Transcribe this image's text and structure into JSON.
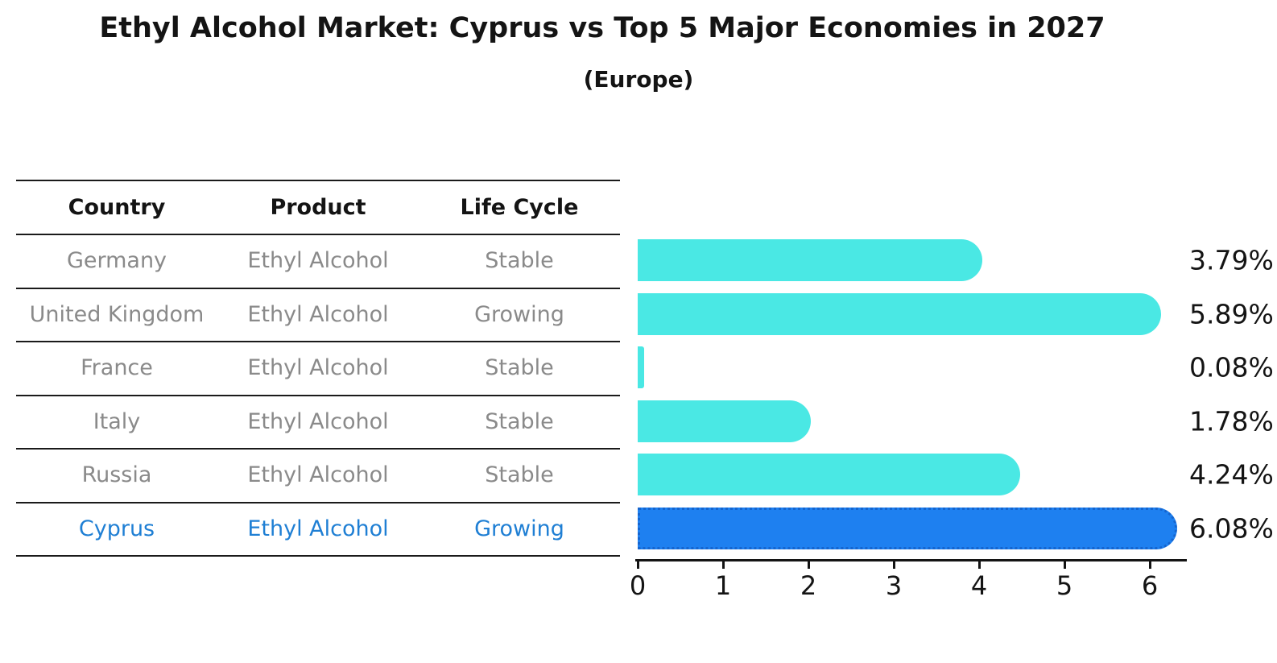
{
  "title": "Ethyl Alcohol Market: Cyprus vs Top 5 Major Economies in 2027",
  "subtitle": "(Europe)",
  "table": {
    "headers": [
      "Country",
      "Product",
      "Life Cycle"
    ],
    "rows": [
      {
        "country": "Germany",
        "product": "Ethyl Alcohol",
        "life_cycle": "Stable",
        "highlighted": false
      },
      {
        "country": "United Kingdom",
        "product": "Ethyl Alcohol",
        "life_cycle": "Growing",
        "highlighted": false
      },
      {
        "country": "France",
        "product": "Ethyl Alcohol",
        "life_cycle": "Stable",
        "highlighted": false
      },
      {
        "country": "Italy",
        "product": "Ethyl Alcohol",
        "life_cycle": "Stable",
        "highlighted": false
      },
      {
        "country": "Russia",
        "product": "Ethyl Alcohol",
        "life_cycle": "Stable",
        "highlighted": false
      },
      {
        "country": "Cyprus",
        "product": "Ethyl Alcohol",
        "life_cycle": "Growing",
        "highlighted": true
      }
    ]
  },
  "chart_data": {
    "type": "bar",
    "orientation": "horizontal",
    "title": "Ethyl Alcohol Market: Cyprus vs Top 5 Major Economies in 2027",
    "subtitle": "(Europe)",
    "categories": [
      "Germany",
      "United Kingdom",
      "France",
      "Italy",
      "Russia",
      "Cyprus"
    ],
    "values": [
      3.79,
      5.89,
      0.08,
      1.78,
      4.24,
      6.08
    ],
    "value_labels": [
      "3.79%",
      "5.89%",
      "0.08%",
      "1.78%",
      "4.24%",
      "6.08%"
    ],
    "highlight_index": 5,
    "x_ticks": [
      "0",
      "1",
      "2",
      "3",
      "4",
      "5",
      "6"
    ],
    "xlim": [
      0,
      6.4
    ],
    "grid": false,
    "legend": "none"
  },
  "colors": {
    "bar": "#4ae8e4",
    "highlight_bar": "#1e80f0",
    "highlight_border": "#1565cf",
    "highlight_text": "#1f7fd4",
    "row_text": "#8a8a8a",
    "ink": "#141414"
  }
}
